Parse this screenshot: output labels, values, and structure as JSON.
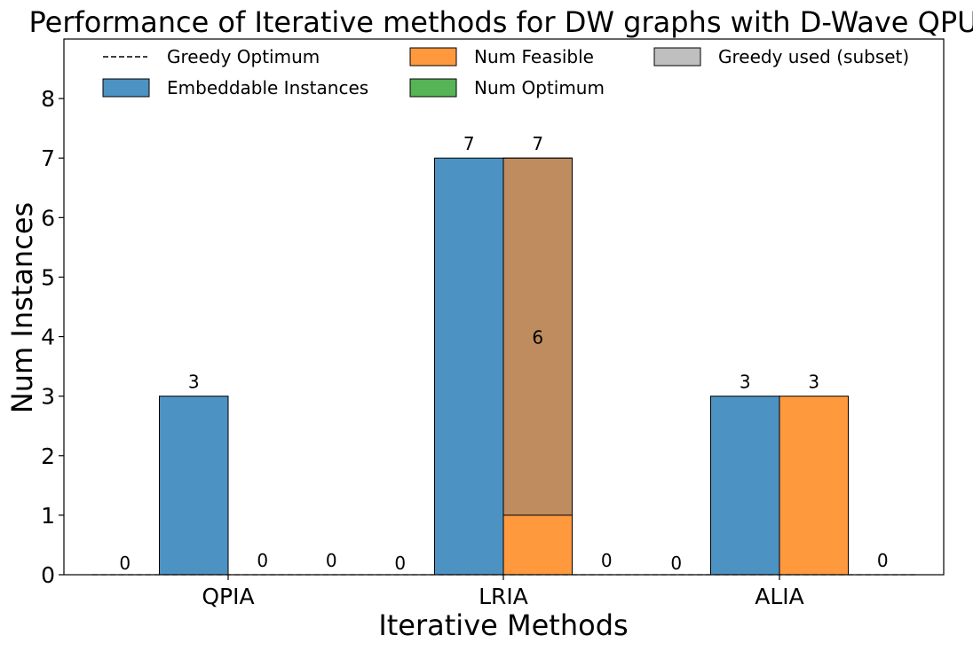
{
  "chart_data": {
    "type": "bar",
    "title": "Performance of Iterative methods for DW graphs with D-Wave QPU",
    "xlabel": "Iterative Methods",
    "ylabel": "Num Instances",
    "ylim": [
      0,
      9
    ],
    "yticks": [
      0,
      1,
      2,
      3,
      4,
      5,
      6,
      7,
      8
    ],
    "categories": [
      "QPIA",
      "LRIA",
      "ALIA"
    ],
    "legend_placement": "top",
    "grid": false,
    "series": [
      {
        "name": "Greedy Optimum",
        "kind": "dashed-line",
        "values": [
          0,
          0,
          0
        ],
        "labels": [
          "0",
          "0",
          "0"
        ],
        "color": "#000000"
      },
      {
        "name": "Embeddable Instances",
        "values": [
          3,
          7,
          3
        ],
        "labels": [
          "3",
          "7",
          "3"
        ],
        "color": "#1f77b4"
      },
      {
        "name": "Num Feasible",
        "values": [
          0,
          7,
          3
        ],
        "labels": [
          "0",
          "7",
          "3"
        ],
        "color": "#ff7f0e"
      },
      {
        "name": "Greedy used (subset)",
        "values": [
          0,
          6,
          0
        ],
        "labels": [
          "",
          "6",
          ""
        ],
        "color": "#808080",
        "overlay_on": "Num Feasible"
      },
      {
        "name": "Num Optimum",
        "values": [
          0,
          0,
          0
        ],
        "labels": [
          "0",
          "0",
          "0"
        ],
        "color": "#2ca02c"
      }
    ],
    "legend_order": [
      "Greedy Optimum",
      "Embeddable Instances",
      "Num Feasible",
      "Num Optimum",
      "Greedy used (subset)"
    ]
  }
}
